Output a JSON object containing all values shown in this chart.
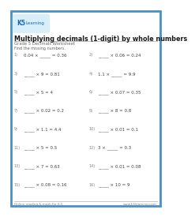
{
  "title": "Multiplying decimals (1-digit) by whole numbers",
  "subtitle": "Grade 5 Decimals Worksheet",
  "instruction": "Find the missing numbers.",
  "footer_left": "Online reading & math for K-5",
  "footer_right": "www.k5learning.com",
  "bg_color": "#ffffff",
  "border_color": "#4a90c4",
  "title_color": "#1a1a1a",
  "subtitle_color": "#666666",
  "instruction_color": "#666666",
  "problem_color": "#444444",
  "num_color": "#888888",
  "problems_left": [
    {
      "num": "1)",
      "text": "0.04 × _____ = 0.36"
    },
    {
      "num": "3)",
      "text": "_____ × 9 = 0.81"
    },
    {
      "num": "5)",
      "text": "_____ × 5 = 4"
    },
    {
      "num": "7)",
      "text": "_____ × 0.02 = 0.2"
    },
    {
      "num": "9)",
      "text": "_____ × 1.1 = 4.4"
    },
    {
      "num": "11)",
      "text": "_____ × 5 = 0.5"
    },
    {
      "num": "13)",
      "text": "_____ × 7 = 0.63"
    },
    {
      "num": "15)",
      "text": "_____ × 0.08 = 0.16"
    }
  ],
  "problems_right": [
    {
      "num": "2)",
      "text": "_____ × 0.06 = 0.24"
    },
    {
      "num": "4)",
      "text": "1.1 × _____ = 9.9"
    },
    {
      "num": "6)",
      "text": "_____ × 0.07 = 0.35"
    },
    {
      "num": "8)",
      "text": "_____ × 8 = 0.8"
    },
    {
      "num": "10)",
      "text": "_____ × 0.01 = 0.1"
    },
    {
      "num": "12)",
      "text": "3 × _____ = 0.3"
    },
    {
      "num": "14)",
      "text": "_____ × 0.01 = 0.08"
    },
    {
      "num": "16)",
      "text": "_____ × 10 = 9"
    }
  ]
}
